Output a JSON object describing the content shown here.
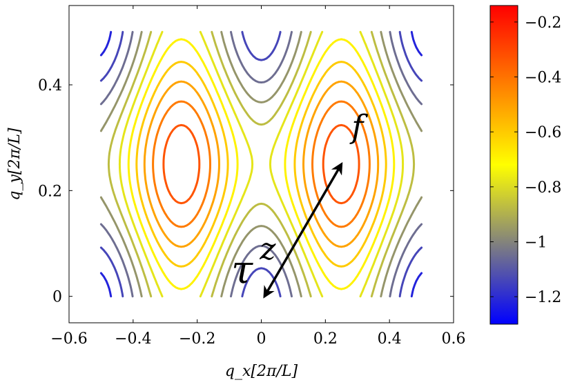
{
  "chart_data": {
    "type": "contour",
    "title": "",
    "xlabel": "q_x[2π/L]",
    "ylabel": "q_y[2π/L]",
    "xlim": [
      -0.6,
      0.6
    ],
    "ylim": [
      -0.05,
      0.55
    ],
    "x_ticks": [
      -0.6,
      -0.4,
      -0.2,
      0,
      0.2,
      0.4,
      0.6
    ],
    "x_tick_labels": [
      "−0.6",
      "−0.4",
      "−0.2",
      "0",
      "0.2",
      "0.4",
      "0.6"
    ],
    "y_ticks": [
      0,
      0.2,
      0.4
    ],
    "y_tick_labels": [
      "0",
      "0.2",
      "0.4"
    ],
    "grid": false,
    "domain": {
      "x": [
        -0.5,
        0.5
      ],
      "y": [
        0,
        0.5
      ]
    },
    "minima": [
      {
        "x": 0,
        "y": 0,
        "value": -1.3
      },
      {
        "x": 0,
        "y": 0.5,
        "value": -1.3
      },
      {
        "x": -0.5,
        "y": 0,
        "value": -1.3
      },
      {
        "x": 0.5,
        "y": 0,
        "value": -1.3
      },
      {
        "x": -0.5,
        "y": 0.5,
        "value": -1.3
      },
      {
        "x": 0.5,
        "y": 0.5,
        "value": -1.3
      }
    ],
    "maxima": [
      {
        "x": -0.25,
        "y": 0.25,
        "value": -0.14
      },
      {
        "x": 0.25,
        "y": 0.25,
        "value": -0.14
      }
    ],
    "contour_levels": [
      -1.22,
      -1.14,
      -1.05,
      -0.96,
      -0.87,
      -0.78,
      -0.69,
      -0.6,
      -0.51,
      -0.42,
      -0.33,
      -0.24,
      -0.18
    ],
    "colorbar": {
      "range": [
        -1.3,
        -0.14
      ],
      "ticks": [
        -1.2,
        -1,
        -0.8,
        -0.6,
        -0.4,
        -0.2
      ],
      "tick_labels": [
        "−1.2",
        "−1",
        "−0.8",
        "−0.6",
        "−0.4",
        "−0.2"
      ],
      "colors": [
        "#0000ff",
        "#ffff00",
        "#ff0000"
      ]
    },
    "annotations": [
      {
        "text": "f",
        "x": 0.3,
        "y": 0.3
      },
      {
        "text": "τ",
        "x": -0.06,
        "y": 0.025
      },
      {
        "text": "z",
        "x": 0.02,
        "y": 0.07
      }
    ],
    "arrow": {
      "from": {
        "x": 0.01,
        "y": 0.0
      },
      "to": {
        "x": 0.25,
        "y": 0.25
      }
    }
  }
}
